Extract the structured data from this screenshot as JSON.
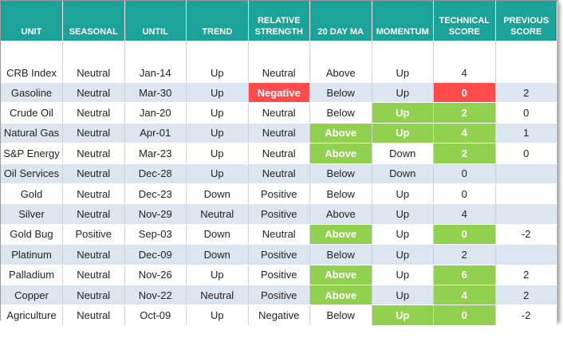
{
  "table": {
    "colors": {
      "header": "#1ba39a",
      "band": "#dce6f1",
      "green": "#92d050",
      "red": "#ff4b4b"
    },
    "header": [
      "UNIT",
      "SEASONAL",
      "UNTIL",
      "TREND",
      "RELATIVE STRENGTH",
      "20 DAY MA",
      "MOMENTUM",
      "TECHNICAL SCORE",
      "PREVIOUS SCORE"
    ],
    "rows": [
      {
        "cells": [
          "CRB Index",
          "Neutral",
          "Jan-14",
          "Up",
          "Neutral",
          "Above",
          "Up",
          4,
          null
        ],
        "fills": [
          null,
          null,
          null,
          null,
          null,
          null,
          null,
          null,
          null
        ]
      },
      {
        "cells": [
          "Gasoline",
          "Neutral",
          "Mar-30",
          "Up",
          "Negative",
          "Below",
          "Up",
          0,
          2
        ],
        "fills": [
          null,
          null,
          null,
          null,
          "red",
          null,
          null,
          "red",
          null
        ]
      },
      {
        "cells": [
          "Crude Oil",
          "Neutral",
          "Jan-20",
          "Up",
          "Neutral",
          "Below",
          "Up",
          2,
          0
        ],
        "fills": [
          null,
          null,
          null,
          null,
          null,
          null,
          "green",
          "green",
          null
        ]
      },
      {
        "cells": [
          "Natural Gas",
          "Neutral",
          "Apr-01",
          "Up",
          "Neutral",
          "Above",
          "Up",
          4,
          1
        ],
        "fills": [
          null,
          null,
          null,
          null,
          null,
          "green",
          "green",
          "green",
          null
        ]
      },
      {
        "cells": [
          "S&P Energy",
          "Neutral",
          "Mar-23",
          "Up",
          "Neutral",
          "Above",
          "Down",
          2,
          0
        ],
        "fills": [
          null,
          null,
          null,
          null,
          null,
          "green",
          null,
          "green",
          null
        ]
      },
      {
        "cells": [
          "Oil Services",
          "Neutral",
          "Dec-28",
          "Up",
          "Neutral",
          "Below",
          "Down",
          0,
          null
        ],
        "fills": [
          null,
          null,
          null,
          null,
          null,
          null,
          null,
          null,
          null
        ]
      },
      {
        "cells": [
          "Gold",
          "Neutral",
          "Dec-23",
          "Down",
          "Positive",
          "Below",
          "Up",
          0,
          null
        ],
        "fills": [
          null,
          null,
          null,
          null,
          null,
          null,
          null,
          null,
          null
        ]
      },
      {
        "cells": [
          "Silver",
          "Neutral",
          "Nov-29",
          "Neutral",
          "Positive",
          "Above",
          "Up",
          4,
          null
        ],
        "fills": [
          null,
          null,
          null,
          null,
          null,
          null,
          null,
          null,
          null
        ]
      },
      {
        "cells": [
          "Gold Bug",
          "Positive",
          "Sep-03",
          "Down",
          "Neutral",
          "Above",
          "Up",
          0,
          -2
        ],
        "fills": [
          null,
          null,
          null,
          null,
          null,
          "green",
          null,
          "green",
          null
        ]
      },
      {
        "cells": [
          "Platinum",
          "Neutral",
          "Dec-09",
          "Down",
          "Positive",
          "Below",
          "Up",
          2,
          null
        ],
        "fills": [
          null,
          null,
          null,
          null,
          null,
          null,
          null,
          null,
          null
        ]
      },
      {
        "cells": [
          "Palladium",
          "Neutral",
          "Nov-26",
          "Up",
          "Positive",
          "Above",
          "Up",
          6,
          2
        ],
        "fills": [
          null,
          null,
          null,
          null,
          null,
          "green",
          null,
          "green",
          null
        ]
      },
      {
        "cells": [
          "Copper",
          "Neutral",
          "Nov-22",
          "Neutral",
          "Positive",
          "Above",
          "Up",
          4,
          2
        ],
        "fills": [
          null,
          null,
          null,
          null,
          null,
          "green",
          null,
          "green",
          null
        ]
      },
      {
        "cells": [
          "Agriculture",
          "Neutral",
          "Oct-09",
          "Up",
          "Negative",
          "Below",
          "Up",
          0,
          -2
        ],
        "fills": [
          null,
          null,
          null,
          null,
          null,
          null,
          "green",
          "green",
          null
        ]
      }
    ]
  }
}
